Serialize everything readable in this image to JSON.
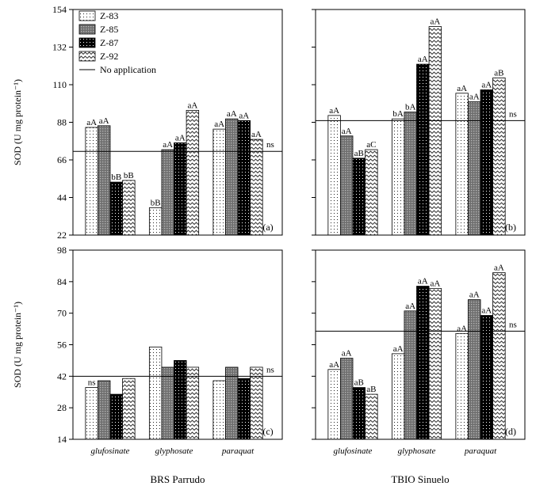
{
  "chart_data": {
    "type": "bar",
    "categories": [
      "glufosinate",
      "glyphosate",
      "paraquat"
    ],
    "series_names": [
      "Z-83",
      "Z-85",
      "Z-87",
      "Z-92"
    ],
    "reference_label": "No application",
    "ylabel": "SOD (U mg protein⁻¹)",
    "columns": [
      "BRS Parrudo",
      "TBIO Sinuelo"
    ],
    "panels": [
      {
        "tag": "(a)",
        "row": 0,
        "col": 0,
        "ylim": [
          22,
          154
        ],
        "yticks": [
          22,
          44,
          66,
          88,
          110,
          132,
          154
        ],
        "reference": 71,
        "reference_note": "ns",
        "values": [
          [
            85,
            86,
            53,
            54
          ],
          [
            38,
            72,
            76,
            95
          ],
          [
            84,
            90,
            89,
            78
          ]
        ],
        "labels": [
          [
            "aA",
            "aA",
            "bB",
            "bB"
          ],
          [
            "bB",
            "aA",
            "aA",
            "aA"
          ],
          [
            "aA",
            "aA",
            "aA",
            "aA"
          ]
        ]
      },
      {
        "tag": "(b)",
        "row": 0,
        "col": 1,
        "ylim": [
          22,
          154
        ],
        "yticks": [
          22,
          44,
          66,
          88,
          110,
          132,
          154
        ],
        "reference": 89,
        "reference_note": "ns",
        "values": [
          [
            92,
            80,
            67,
            72
          ],
          [
            90,
            94,
            122,
            144
          ],
          [
            105,
            100,
            107,
            114
          ]
        ],
        "labels": [
          [
            "aA",
            "aA",
            "aB",
            "aC"
          ],
          [
            "bA",
            "bA",
            "aA",
            "aA"
          ],
          [
            "aA",
            "aA",
            "aA",
            "aB"
          ]
        ]
      },
      {
        "tag": "(c)",
        "row": 1,
        "col": 0,
        "ylim": [
          14,
          98
        ],
        "yticks": [
          14,
          28,
          42,
          56,
          70,
          84,
          98
        ],
        "reference": 42,
        "reference_note": "ns",
        "values": [
          [
            37,
            40,
            34,
            41
          ],
          [
            55,
            46,
            49,
            46
          ],
          [
            40,
            46,
            41,
            46
          ]
        ],
        "labels": [
          [
            "ns",
            "",
            "",
            ""
          ],
          [
            "",
            "",
            "",
            ""
          ],
          [
            "",
            "",
            "",
            ""
          ]
        ]
      },
      {
        "tag": "(d)",
        "row": 1,
        "col": 1,
        "ylim": [
          14,
          98
        ],
        "yticks": [
          14,
          28,
          42,
          56,
          70,
          84,
          98
        ],
        "reference": 62,
        "reference_note": "ns",
        "values": [
          [
            45,
            50,
            37,
            34
          ],
          [
            52,
            71,
            82,
            81
          ],
          [
            61,
            76,
            69,
            88
          ]
        ],
        "labels": [
          [
            "aA",
            "aA",
            "aB",
            "aB"
          ],
          [
            "aA",
            "aA",
            "aA",
            "aA"
          ],
          [
            "aA",
            "aA",
            "aA",
            "aA"
          ]
        ]
      }
    ],
    "grid": false,
    "legend_position": "top-left"
  }
}
